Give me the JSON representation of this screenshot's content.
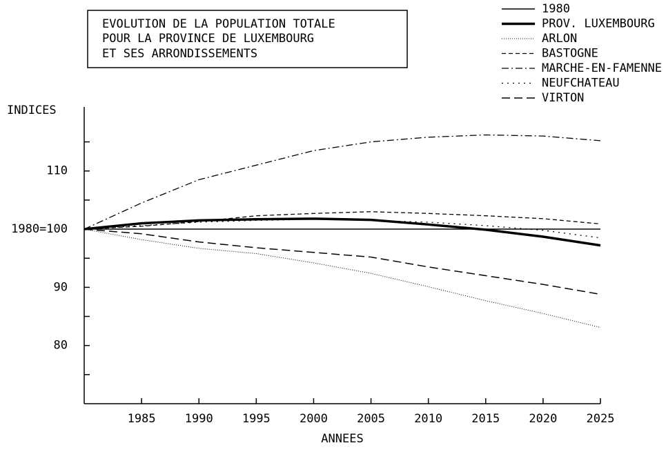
{
  "chart_data": {
    "type": "line",
    "title": [
      "EVOLUTION DE LA POPULATION TOTALE",
      "POUR LA PROVINCE DE LUXEMBOURG",
      "ET SES ARRONDISSEMENTS"
    ],
    "y_label": "INDICES",
    "x_label": "ANNEES",
    "x": [
      1980,
      1985,
      1990,
      1995,
      2000,
      2005,
      2010,
      2015,
      2020,
      2025
    ],
    "series": [
      {
        "name": "1980",
        "color": "#000",
        "width": 1.5,
        "dash": "none",
        "values": [
          100,
          100,
          100,
          100,
          100,
          100,
          100,
          100,
          100,
          100
        ]
      },
      {
        "name": "PROV. LUXEMBOURG",
        "color": "#000",
        "width": 3.5,
        "dash": "none",
        "values": [
          100,
          101,
          101.5,
          101.7,
          101.8,
          101.6,
          100.8,
          99.9,
          98.7,
          97.2
        ]
      },
      {
        "name": "ARLON",
        "color": "#000",
        "width": 1,
        "dash": "1 2",
        "values": [
          100,
          98.2,
          96.7,
          95.8,
          94.2,
          92.4,
          90.1,
          87.7,
          85.5,
          83.1
        ]
      },
      {
        "name": "BASTOGNE",
        "color": "#000",
        "width": 1.3,
        "dash": "6 4",
        "values": [
          100,
          100.5,
          101.3,
          102.3,
          102.7,
          103,
          102.7,
          102.3,
          101.8,
          100.9
        ]
      },
      {
        "name": "MARCHE-EN-FAMENNE",
        "color": "#000",
        "width": 1.3,
        "dash": "10 4 2 4",
        "values": [
          100,
          104.5,
          108.5,
          111,
          113.5,
          115,
          115.8,
          116.2,
          116,
          115.2
        ]
      },
      {
        "name": "NEUFCHATEAU",
        "color": "#000",
        "width": 1.3,
        "dash": "2 6",
        "values": [
          100,
          100.6,
          101.2,
          101.5,
          101.7,
          101.5,
          101.2,
          100.6,
          99.8,
          98.5
        ]
      },
      {
        "name": "VIRTON",
        "color": "#000",
        "width": 1.5,
        "dash": "12 6",
        "values": [
          100,
          99.2,
          97.8,
          96.8,
          96,
          95.2,
          93.5,
          92,
          90.5,
          88.8
        ]
      }
    ],
    "xlim": [
      1980,
      2025
    ],
    "xticks": [
      1985,
      1990,
      1995,
      2000,
      2005,
      2010,
      2015,
      2020,
      2025
    ],
    "ylim": [
      70,
      121
    ],
    "yticks": [
      80,
      90,
      {
        "value": 100,
        "label": "1980=100"
      },
      110
    ],
    "yminor_ticks": [
      75,
      85,
      95,
      105,
      115
    ]
  }
}
